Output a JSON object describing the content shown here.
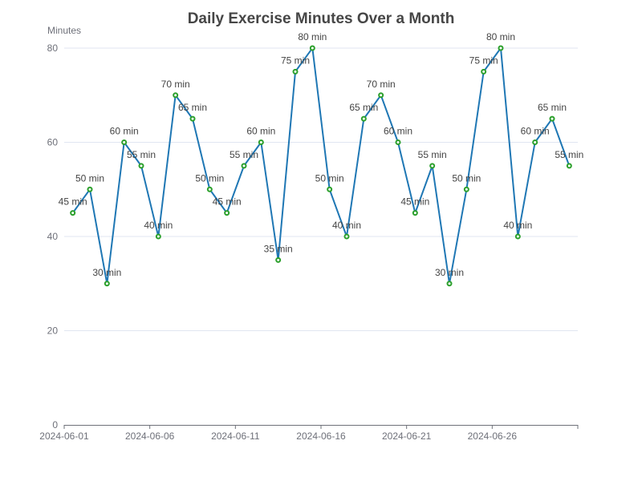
{
  "colors": {
    "line": "#1f77b4",
    "marker": "#2ca02c"
  },
  "chart_data": {
    "type": "line",
    "title": "Daily Exercise Minutes Over a Month",
    "xlabel": "",
    "ylabel": "Minutes",
    "ylim": [
      0,
      80
    ],
    "yticks": [
      0,
      20,
      40,
      60,
      80
    ],
    "grid": true,
    "legend": "none",
    "x": [
      "2024-06-01",
      "2024-06-02",
      "2024-06-03",
      "2024-06-04",
      "2024-06-05",
      "2024-06-06",
      "2024-06-07",
      "2024-06-08",
      "2024-06-09",
      "2024-06-10",
      "2024-06-11",
      "2024-06-12",
      "2024-06-13",
      "2024-06-14",
      "2024-06-15",
      "2024-06-16",
      "2024-06-17",
      "2024-06-18",
      "2024-06-19",
      "2024-06-20",
      "2024-06-21",
      "2024-06-22",
      "2024-06-23",
      "2024-06-24",
      "2024-06-25",
      "2024-06-26",
      "2024-06-27",
      "2024-06-28",
      "2024-06-29",
      "2024-06-30"
    ],
    "xtick_labels": [
      "2024-06-01",
      "2024-06-06",
      "2024-06-11",
      "2024-06-16",
      "2024-06-21",
      "2024-06-26"
    ],
    "series": [
      {
        "values": [
          45,
          50,
          30,
          60,
          55,
          40,
          70,
          65,
          50,
          45,
          55,
          60,
          35,
          75,
          80,
          50,
          40,
          65,
          70,
          60,
          45,
          55,
          30,
          50,
          75,
          80,
          40,
          60,
          65,
          55
        ],
        "labels": [
          "45 min",
          "50 min",
          "30 min",
          "60 min",
          "55 min",
          "40 min",
          "70 min",
          "65 min",
          "50 min",
          "45 min",
          "55 min",
          "60 min",
          "35 min",
          "75 min",
          "80 min",
          "50 min",
          "40 min",
          "65 min",
          "70 min",
          "60 min",
          "45 min",
          "55 min",
          "30 min",
          "50 min",
          "75 min",
          "80 min",
          "40 min",
          "60 min",
          "65 min",
          "55 min"
        ]
      }
    ]
  }
}
